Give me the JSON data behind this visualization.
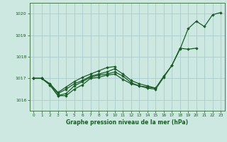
{
  "title": "Graphe pression niveau de la mer (hPa)",
  "background_color": "#cce8e0",
  "grid_color": "#aacccc",
  "line_color": "#1a5c28",
  "marker_color": "#1a5c28",
  "xlim": [
    -0.5,
    23.5
  ],
  "ylim": [
    1015.5,
    1020.5
  ],
  "yticks": [
    1016,
    1017,
    1018,
    1019,
    1020
  ],
  "xticks": [
    0,
    1,
    2,
    3,
    4,
    5,
    6,
    7,
    8,
    9,
    10,
    11,
    12,
    13,
    14,
    15,
    16,
    17,
    18,
    19,
    20,
    21,
    22,
    23
  ],
  "series": [
    [
      1017.0,
      1017.0,
      1016.7,
      1016.2,
      1016.2,
      1016.5,
      1016.7,
      1017.0,
      1017.05,
      1017.15,
      1017.2,
      1016.95,
      1016.75,
      1016.65,
      1016.55,
      1016.5,
      1017.05,
      1017.6,
      1018.35,
      1019.3,
      1019.65,
      1019.4,
      1019.95,
      1020.05
    ],
    [
      1017.0,
      1017.0,
      1016.7,
      1016.2,
      1016.3,
      1016.65,
      1016.85,
      1017.05,
      1017.15,
      1017.2,
      1017.3,
      1017.1,
      1016.8,
      1016.65,
      1016.6,
      1016.55,
      1017.1,
      1017.6,
      1018.4,
      1018.35,
      1018.4,
      null,
      null,
      null
    ],
    [
      1017.0,
      1017.0,
      1016.75,
      1016.3,
      1016.5,
      1016.75,
      1016.9,
      1017.1,
      1017.2,
      1017.3,
      1017.45,
      1017.2,
      1016.9,
      1016.75,
      1016.65,
      1016.55,
      null,
      null,
      null,
      null,
      null,
      null,
      null,
      null
    ],
    [
      1017.0,
      1017.0,
      1016.75,
      1016.35,
      1016.6,
      1016.85,
      1017.05,
      1017.2,
      1017.35,
      1017.5,
      1017.55,
      null,
      null,
      null,
      null,
      null,
      null,
      null,
      null,
      null,
      null,
      null,
      null,
      null
    ]
  ]
}
